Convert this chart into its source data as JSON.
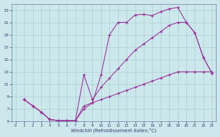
{
  "bg_color": "#cce8ed",
  "grid_color": "#aacccc",
  "line_color": "#993399",
  "xlabel": "Windchill (Refroidissement éolien,°C)",
  "xlim": [
    -0.5,
    23.5
  ],
  "ylim": [
    5,
    24
  ],
  "xtick_vals": [
    0,
    1,
    2,
    3,
    4,
    5,
    6,
    7,
    8,
    9,
    10,
    11,
    12,
    13,
    14,
    15,
    16,
    17,
    18,
    19,
    20,
    21,
    22,
    23
  ],
  "ytick_vals": [
    5,
    7,
    9,
    11,
    13,
    15,
    17,
    19,
    21,
    23
  ],
  "line1_x": [
    1,
    2,
    3,
    4,
    5,
    6,
    7,
    8,
    9,
    10,
    11,
    12,
    13,
    14,
    15,
    16,
    17,
    18,
    19,
    20,
    21,
    22,
    23
  ],
  "line1_y": [
    8.5,
    7.5,
    6.5,
    5.3,
    5.1,
    5.1,
    5.1,
    7.5,
    8.0,
    12.5,
    19.0,
    21.0,
    21.0,
    22.2,
    22.3,
    22.1,
    22.7,
    23.2,
    23.4,
    21.0,
    19.3,
    15.3,
    12.8
  ],
  "line2_x": [
    1,
    2,
    3,
    4,
    5,
    6,
    7,
    8,
    9,
    10,
    11,
    12,
    13,
    14,
    15,
    16,
    17,
    18,
    19,
    20,
    21,
    22,
    23
  ],
  "line2_y": [
    8.5,
    7.5,
    6.5,
    5.3,
    5.1,
    5.1,
    5.1,
    12.5,
    8.5,
    10.5,
    12.0,
    13.5,
    15.0,
    16.5,
    17.5,
    18.5,
    19.5,
    20.5,
    21.0,
    21.0,
    19.3,
    15.3,
    12.8
  ],
  "line3_x": [
    1,
    2,
    3,
    4,
    5,
    6,
    7,
    8,
    9,
    10,
    11,
    12,
    13,
    14,
    15,
    16,
    17,
    18,
    19,
    20,
    21,
    22,
    23
  ],
  "line3_y": [
    8.5,
    7.5,
    6.5,
    5.3,
    5.1,
    5.1,
    5.1,
    7.0,
    8.0,
    8.5,
    9.0,
    9.5,
    10.0,
    10.5,
    11.0,
    11.5,
    12.0,
    12.5,
    13.0,
    13.0,
    13.0,
    13.0,
    13.0
  ]
}
